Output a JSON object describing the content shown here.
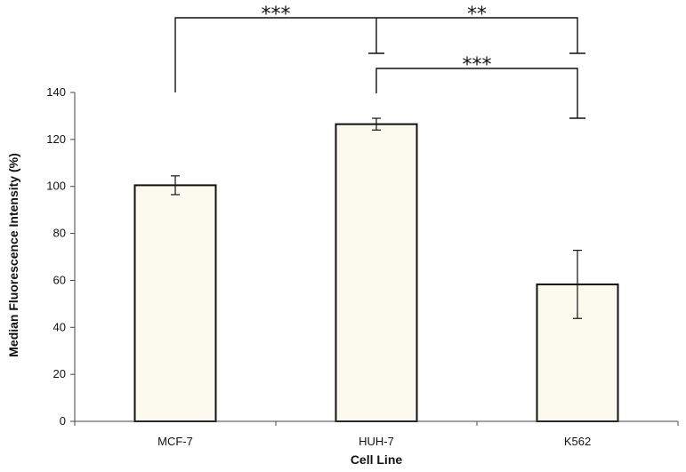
{
  "chart_data": {
    "type": "bar",
    "categories": [
      "MCF-7",
      "HUH-7",
      "K562"
    ],
    "values": [
      100.5,
      126.5,
      58.3
    ],
    "errors": [
      4,
      2.5,
      14.5
    ],
    "xlabel": "Cell Line",
    "ylabel": "Median Fluorescence Intensity (%)",
    "ylim": [
      0,
      140
    ],
    "yticks": [
      0,
      20,
      40,
      60,
      80,
      100,
      120,
      140
    ],
    "bar_color": "#fcf9ee",
    "bar_edge_color": "#111111",
    "grid": false,
    "significance": [
      {
        "from": "MCF-7",
        "to": "HUH-7",
        "label": "***"
      },
      {
        "from": "HUH-7",
        "to": "K562",
        "label": "**"
      },
      {
        "from": "HUH-7",
        "to": "K562",
        "label": "***"
      }
    ]
  }
}
